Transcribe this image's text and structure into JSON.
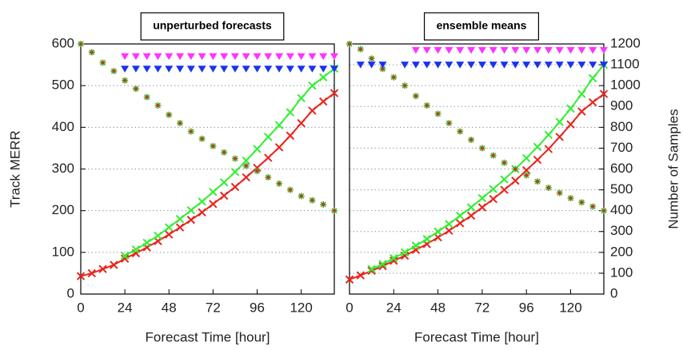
{
  "chart_data": [
    {
      "type": "line",
      "title": "unperturbed forecasts",
      "xlabel": "Forecast Time [hour]",
      "ylabel": "Track MERR",
      "x": [
        0,
        6,
        12,
        18,
        24,
        30,
        36,
        42,
        48,
        54,
        60,
        66,
        72,
        78,
        84,
        90,
        96,
        102,
        108,
        114,
        120,
        126,
        132,
        138
      ],
      "xlim": [
        0,
        138
      ],
      "xticks": [
        0,
        24,
        48,
        72,
        96,
        120
      ],
      "ylim": [
        0,
        600
      ],
      "yticks": [
        0,
        100,
        200,
        300,
        400,
        500,
        600
      ],
      "y2lim": [
        0,
        1200
      ],
      "grid": true,
      "series": [
        {
          "color": "#e8251e",
          "marker": "x",
          "line": true,
          "axis": "y",
          "values": [
            43,
            50,
            60,
            70,
            85,
            98,
            112,
            127,
            143,
            160,
            178,
            196,
            216,
            236,
            257,
            280,
            303,
            327,
            352,
            380,
            410,
            440,
            462,
            482
          ]
        },
        {
          "color": "#33ee33",
          "marker": "x",
          "line": true,
          "axis": "y",
          "values": [
            null,
            null,
            null,
            null,
            92,
            107,
            123,
            140,
            160,
            180,
            201,
            222,
            245,
            268,
            293,
            320,
            348,
            377,
            405,
            436,
            470,
            500,
            520,
            541
          ]
        },
        {
          "color": "#55aa33",
          "edge_color": "#d03020",
          "marker": "star",
          "line": false,
          "axis": "y2",
          "values": [
            1200,
            1160,
            1110,
            1070,
            1025,
            985,
            945,
            905,
            860,
            820,
            780,
            745,
            710,
            680,
            650,
            615,
            590,
            560,
            530,
            500,
            470,
            450,
            430,
            400
          ]
        },
        {
          "color": "#ff33ff",
          "marker": "triangle",
          "line": false,
          "axis": "y2",
          "values": [
            null,
            null,
            null,
            null,
            1140,
            1140,
            1140,
            1140,
            1140,
            1140,
            1140,
            1140,
            1140,
            1140,
            1140,
            1140,
            1140,
            1140,
            1140,
            1140,
            1140,
            1140,
            1140,
            1140
          ]
        },
        {
          "color": "#1a33ee",
          "marker": "triangle",
          "line": false,
          "axis": "y2",
          "values": [
            null,
            null,
            null,
            null,
            1080,
            1080,
            1080,
            1080,
            1080,
            1080,
            1080,
            1080,
            1080,
            1080,
            1080,
            1080,
            1080,
            1080,
            1080,
            1080,
            1080,
            1080,
            1080,
            1080
          ]
        }
      ]
    },
    {
      "type": "line",
      "title": "ensemble means",
      "xlabel": "Forecast Time [hour]",
      "y2label": "Number of Samples",
      "x": [
        0,
        6,
        12,
        18,
        24,
        30,
        36,
        42,
        48,
        54,
        60,
        66,
        72,
        78,
        84,
        90,
        96,
        102,
        108,
        114,
        120,
        126,
        132,
        138
      ],
      "xlim": [
        0,
        138
      ],
      "xticks": [
        0,
        24,
        48,
        72,
        96,
        120
      ],
      "ylim": [
        0,
        600
      ],
      "y2lim": [
        0,
        1200
      ],
      "y2ticks": [
        0,
        100,
        200,
        300,
        400,
        500,
        600,
        700,
        800,
        900,
        1000,
        1100,
        1200
      ],
      "grid": true,
      "series": [
        {
          "color": "#e8251e",
          "marker": "x",
          "line": true,
          "axis": "y",
          "values": [
            35,
            45,
            56,
            67,
            80,
            92,
            106,
            120,
            136,
            152,
            170,
            188,
            208,
            228,
            250,
            272,
            297,
            322,
            348,
            377,
            407,
            438,
            460,
            480
          ]
        },
        {
          "color": "#33ee33",
          "marker": "x",
          "line": true,
          "axis": "y",
          "values": [
            null,
            null,
            60,
            72,
            86,
            100,
            116,
            132,
            150,
            168,
            188,
            208,
            230,
            252,
            275,
            300,
            326,
            353,
            382,
            413,
            445,
            480,
            518,
            550
          ]
        },
        {
          "color": "#55aa33",
          "edge_color": "#d03020",
          "marker": "star",
          "line": false,
          "axis": "y2",
          "values": [
            1200,
            1175,
            1130,
            1080,
            1040,
            1000,
            950,
            905,
            865,
            820,
            780,
            740,
            700,
            665,
            630,
            600,
            570,
            540,
            510,
            485,
            460,
            440,
            420,
            400
          ]
        },
        {
          "color": "#ff33ff",
          "marker": "triangle",
          "line": false,
          "axis": "y2",
          "values": [
            null,
            null,
            null,
            null,
            null,
            null,
            1170,
            1170,
            1170,
            1170,
            1170,
            1170,
            1170,
            1170,
            1170,
            1170,
            1170,
            1170,
            1170,
            1170,
            1170,
            1170,
            1170,
            1170
          ]
        },
        {
          "color": "#1a33ee",
          "marker": "triangle",
          "line": false,
          "axis": "y2",
          "values": [
            null,
            1100,
            1100,
            1100,
            null,
            1100,
            1100,
            1100,
            1100,
            1100,
            1100,
            1100,
            1100,
            1100,
            1100,
            1100,
            1100,
            1100,
            1100,
            1100,
            1100,
            1100,
            1100,
            1100
          ]
        }
      ]
    }
  ]
}
